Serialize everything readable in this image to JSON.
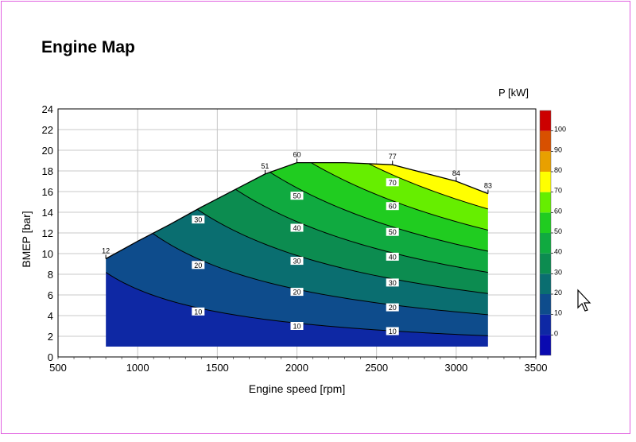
{
  "window": {
    "title": "Engine Map",
    "footer_line1": "",
    "footer_line2": ""
  },
  "colors": {
    "frame": "#e060e0",
    "grid": "#c8c8c8"
  },
  "chart_data": {
    "type": "heatmap",
    "title": "Engine Map",
    "xlabel": "Engine speed [rpm]",
    "ylabel": "BMEP [bar]",
    "colorbar_label": "P [kW]",
    "xlim": [
      500,
      3500
    ],
    "ylim": [
      0,
      24
    ],
    "x_ticks": [
      500,
      1000,
      1500,
      2000,
      2500,
      3000,
      3500
    ],
    "y_ticks": [
      0,
      2,
      4,
      6,
      8,
      10,
      12,
      14,
      16,
      18,
      20,
      22,
      24
    ],
    "grid": true,
    "full_load_curve": {
      "rpm": [
        800,
        1000,
        1200,
        1400,
        1600,
        1800,
        2000,
        2300,
        2600,
        3000,
        3200
      ],
      "bmep": [
        9.5,
        11.2,
        12.8,
        14.5,
        16.1,
        17.7,
        18.8,
        18.8,
        18.6,
        17.0,
        15.8
      ]
    },
    "rpm_range": [
      800,
      3200
    ],
    "bmep_min": 1.0,
    "power_levels": [
      10,
      20,
      30,
      40,
      50,
      60,
      70,
      80,
      90,
      100
    ],
    "colorbar": {
      "ticks": [
        0,
        10,
        20,
        30,
        40,
        50,
        60,
        70,
        80,
        90,
        100
      ],
      "bands": [
        {
          "from": -10,
          "to": 0,
          "color": "#0a0ab0"
        },
        {
          "from": 0,
          "to": 10,
          "color": "#0e28a4"
        },
        {
          "from": 10,
          "to": 20,
          "color": "#0e4c8c"
        },
        {
          "from": 20,
          "to": 30,
          "color": "#0a6e70"
        },
        {
          "from": 30,
          "to": 40,
          "color": "#0c8c50"
        },
        {
          "from": 40,
          "to": 50,
          "color": "#10aa40"
        },
        {
          "from": 50,
          "to": 60,
          "color": "#20cc20"
        },
        {
          "from": 60,
          "to": 70,
          "color": "#66ee00"
        },
        {
          "from": 70,
          "to": 80,
          "color": "#ffff00"
        },
        {
          "from": 80,
          "to": 90,
          "color": "#e8a000"
        },
        {
          "from": 90,
          "to": 100,
          "color": "#d85000"
        },
        {
          "from": 100,
          "to": 110,
          "color": "#cc0000"
        }
      ]
    },
    "contour_labels": [
      {
        "value": 10,
        "rpm": 1380,
        "bmep": 4.4
      },
      {
        "value": 10,
        "rpm": 2000,
        "bmep": 3.0
      },
      {
        "value": 10,
        "rpm": 2600,
        "bmep": 2.5
      },
      {
        "value": 20,
        "rpm": 1380,
        "bmep": 8.9
      },
      {
        "value": 20,
        "rpm": 2000,
        "bmep": 6.3
      },
      {
        "value": 20,
        "rpm": 2600,
        "bmep": 4.8
      },
      {
        "value": 30,
        "rpm": 1380,
        "bmep": 13.3
      },
      {
        "value": 30,
        "rpm": 2000,
        "bmep": 9.3
      },
      {
        "value": 30,
        "rpm": 2600,
        "bmep": 7.2
      },
      {
        "value": 40,
        "rpm": 2000,
        "bmep": 12.5
      },
      {
        "value": 40,
        "rpm": 2600,
        "bmep": 9.7
      },
      {
        "value": 50,
        "rpm": 2000,
        "bmep": 15.6
      },
      {
        "value": 50,
        "rpm": 2600,
        "bmep": 12.1
      },
      {
        "value": 60,
        "rpm": 2600,
        "bmep": 14.6
      },
      {
        "value": 70,
        "rpm": 2600,
        "bmep": 16.9
      }
    ],
    "full_load_labels": [
      {
        "value": 12,
        "rpm": 800,
        "bmep": 9.5
      },
      {
        "value": 51,
        "rpm": 1800,
        "bmep": 17.7
      },
      {
        "value": 60,
        "rpm": 2000,
        "bmep": 18.8
      },
      {
        "value": 77,
        "rpm": 2600,
        "bmep": 18.6
      },
      {
        "value": 84,
        "rpm": 3000,
        "bmep": 17.0
      },
      {
        "value": 83,
        "rpm": 3200,
        "bmep": 15.8
      }
    ]
  }
}
